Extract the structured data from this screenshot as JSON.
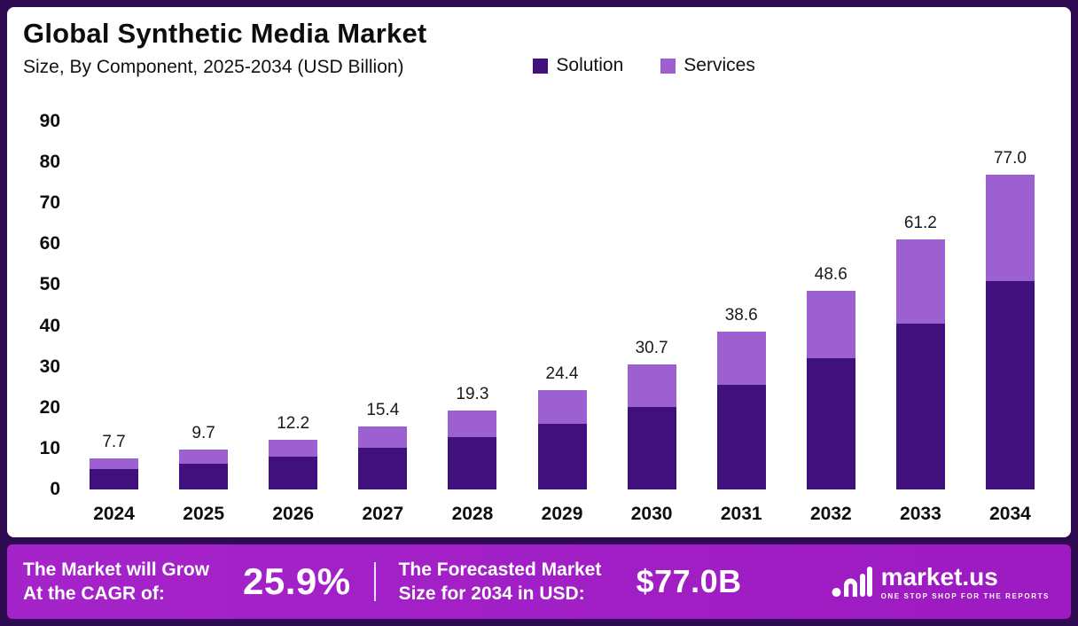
{
  "header": {
    "title": "Global Synthetic Media Market",
    "subtitle": "Size, By Component, 2025-2034 (USD Billion)"
  },
  "chart_data": {
    "type": "bar",
    "stacked": true,
    "title": "Global Synthetic Media Market",
    "subtitle": "Size, By Component, 2025-2034 (USD Billion)",
    "categories": [
      "2024",
      "2025",
      "2026",
      "2027",
      "2028",
      "2029",
      "2030",
      "2031",
      "2032",
      "2033",
      "2034"
    ],
    "series": [
      {
        "name": "Solution",
        "color": "#40107d",
        "values": [
          5.1,
          6.4,
          8.0,
          10.1,
          12.7,
          16.0,
          20.2,
          25.5,
          32.2,
          40.6,
          51.0
        ]
      },
      {
        "name": "Services",
        "color": "#9d60d1",
        "values": [
          2.6,
          3.3,
          4.2,
          5.3,
          6.6,
          8.4,
          10.5,
          13.1,
          16.4,
          20.6,
          26.0
        ]
      }
    ],
    "totals": [
      7.7,
      9.7,
      12.2,
      15.4,
      19.3,
      24.4,
      30.7,
      38.6,
      48.6,
      61.2,
      77.0
    ],
    "total_labels": [
      "7.7",
      "9.7",
      "12.2",
      "15.4",
      "19.3",
      "24.4",
      "30.7",
      "38.6",
      "48.6",
      "61.2",
      "77.0"
    ],
    "ylim": [
      0,
      90
    ],
    "yticks": [
      0,
      10,
      20,
      30,
      40,
      50,
      60,
      70,
      80,
      90
    ],
    "xlabel": "",
    "ylabel": "",
    "grid": false,
    "legend_position": "top-right"
  },
  "legend": [
    {
      "label": "Solution",
      "color": "#40107d"
    },
    {
      "label": "Services",
      "color": "#9d60d1"
    }
  ],
  "footer": {
    "cagr_label": "The Market will Grow At the CAGR of:",
    "cagr_value": "25.9%",
    "forecast_label": "The Forecasted Market Size for 2034 in USD:",
    "forecast_value": "$77.0B",
    "brand": {
      "name": "market.us",
      "tagline": "ONE STOP SHOP FOR THE REPORTS"
    }
  },
  "colors": {
    "solution": "#40107d",
    "services": "#9d60d1",
    "footer_background": "#a21cc6",
    "frame_background": "#2d0a52",
    "card_background": "#ffffff"
  }
}
